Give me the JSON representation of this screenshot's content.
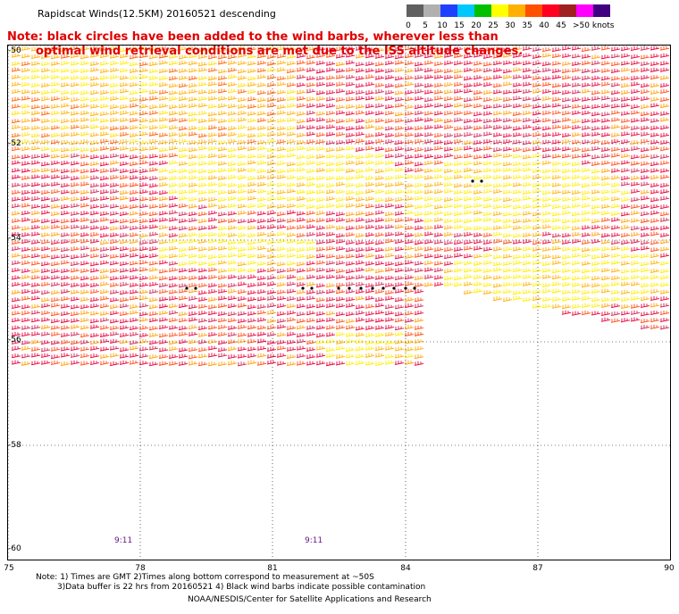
{
  "title": "Rapidscat Winds(12.5KM) 20160521 descending",
  "note": {
    "line1": "Note: black circles have been added to the wind barbs, wherever less than",
    "line2": "optimal wind retrieval conditions are met due to the ISS altitude changes."
  },
  "color_scale": {
    "unit": "knots",
    "bins": [
      {
        "label": "0",
        "color": "#606060"
      },
      {
        "label": "5",
        "color": "#b0b0b0"
      },
      {
        "label": "10",
        "color": "#2040ff"
      },
      {
        "label": "15",
        "color": "#00c8ff"
      },
      {
        "label": "20",
        "color": "#00c000"
      },
      {
        "label": "25",
        "color": "#ffff00"
      },
      {
        "label": "30",
        "color": "#ffb000"
      },
      {
        "label": "35",
        "color": "#ff5000"
      },
      {
        "label": "40",
        "color": "#ff0020"
      },
      {
        "label": "45",
        "color": "#a02020"
      },
      {
        "label": ">50 knots",
        "color": "#ff00ff"
      },
      {
        "label": "",
        "color": "#400080"
      }
    ]
  },
  "map": {
    "lat_range": [
      -60,
      -50
    ],
    "lon_range": [
      75,
      90
    ],
    "lat_labels": [
      "-50",
      "-52",
      "-54",
      "-56",
      "-58",
      "-60"
    ],
    "lon_labels": [
      "75",
      "78",
      "81",
      "84",
      "87",
      "90"
    ],
    "times": [
      "9:11",
      "9:11"
    ]
  },
  "footer": {
    "line1": "Note: 1) Times are GMT 2)Times along bottom correspond to measurement at ~50S",
    "line2": "3)Data buffer is 22 hrs from 20160521 4) Black wind barbs indicate possible contamination",
    "credit": "NOAA/NESDIS/Center for Satellite Applications and Research"
  }
}
